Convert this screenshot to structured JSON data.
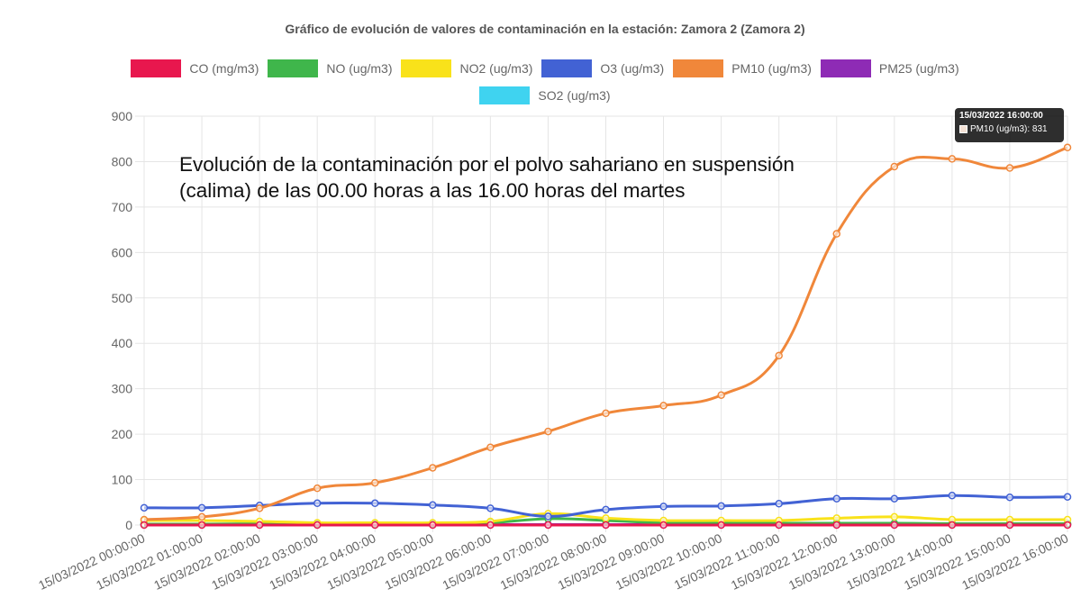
{
  "chart_data": {
    "type": "line",
    "title": "Gráfico de evolución de valores de contaminación en la estación: Zamora 2 (Zamora 2)",
    "xlabel": "",
    "ylabel": "",
    "ylim": [
      0,
      900
    ],
    "yticks": [
      0,
      100,
      200,
      300,
      400,
      500,
      600,
      700,
      800,
      900
    ],
    "grid": true,
    "legend_position": "top",
    "categories": [
      "15/03/2022 00:00:00",
      "15/03/2022 01:00:00",
      "15/03/2022 02:00:00",
      "15/03/2022 03:00:00",
      "15/03/2022 04:00:00",
      "15/03/2022 05:00:00",
      "15/03/2022 06:00:00",
      "15/03/2022 07:00:00",
      "15/03/2022 08:00:00",
      "15/03/2022 09:00:00",
      "15/03/2022 10:00:00",
      "15/03/2022 11:00:00",
      "15/03/2022 12:00:00",
      "15/03/2022 13:00:00",
      "15/03/2022 14:00:00",
      "15/03/2022 15:00:00",
      "15/03/2022 16:00:00"
    ],
    "series": [
      {
        "name": "CO (mg/m3)",
        "color": "#e8174e",
        "values": [
          0,
          0,
          0,
          0,
          0,
          0,
          0,
          0,
          0,
          0,
          0,
          0,
          0,
          0,
          0,
          0,
          0
        ]
      },
      {
        "name": "NO (ug/m3)",
        "color": "#3fb64b",
        "values": [
          2,
          2,
          3,
          3,
          2,
          3,
          5,
          14,
          10,
          5,
          4,
          4,
          4,
          4,
          3,
          3,
          3
        ]
      },
      {
        "name": "NO2 (ug/m3)",
        "color": "#f9e21a",
        "values": [
          10,
          10,
          8,
          5,
          5,
          5,
          8,
          25,
          15,
          10,
          10,
          10,
          15,
          18,
          12,
          12,
          12
        ]
      },
      {
        "name": "O3 (ug/m3)",
        "color": "#4262d4",
        "values": [
          38,
          38,
          43,
          48,
          48,
          44,
          37,
          19,
          34,
          41,
          42,
          47,
          58,
          58,
          65,
          61,
          62
        ]
      },
      {
        "name": "PM10 (ug/m3)",
        "color": "#f0873a",
        "values": [
          12,
          18,
          37,
          81,
          93,
          126,
          171,
          206,
          246,
          263,
          286,
          373,
          641,
          789,
          806,
          786,
          831
        ]
      },
      {
        "name": "PM25 (ug/m3)",
        "color": "#8e2bb5",
        "values": [
          1,
          1,
          1,
          1,
          1,
          1,
          1,
          1,
          1,
          1,
          1,
          1,
          1,
          1,
          1,
          1,
          1
        ]
      },
      {
        "name": "SO2 (ug/m3)",
        "color": "#3fd3f0",
        "values": [
          1,
          1,
          1,
          1,
          1,
          1,
          1,
          1,
          1,
          1,
          1,
          1,
          1,
          1,
          1,
          1,
          1
        ]
      }
    ],
    "annotation": "Evolución de la contaminación por el polvo sahariano en suspensión (calima) de las 00.00 horas a las 16.00 horas del martes",
    "tooltip": {
      "title": "15/03/2022 16:00:00",
      "label": "PM10 (ug/m3): 831",
      "swatch_color": "#f3e0d4"
    }
  },
  "colors": {
    "grid": "#e5e5e5",
    "tick_text": "#666666"
  }
}
